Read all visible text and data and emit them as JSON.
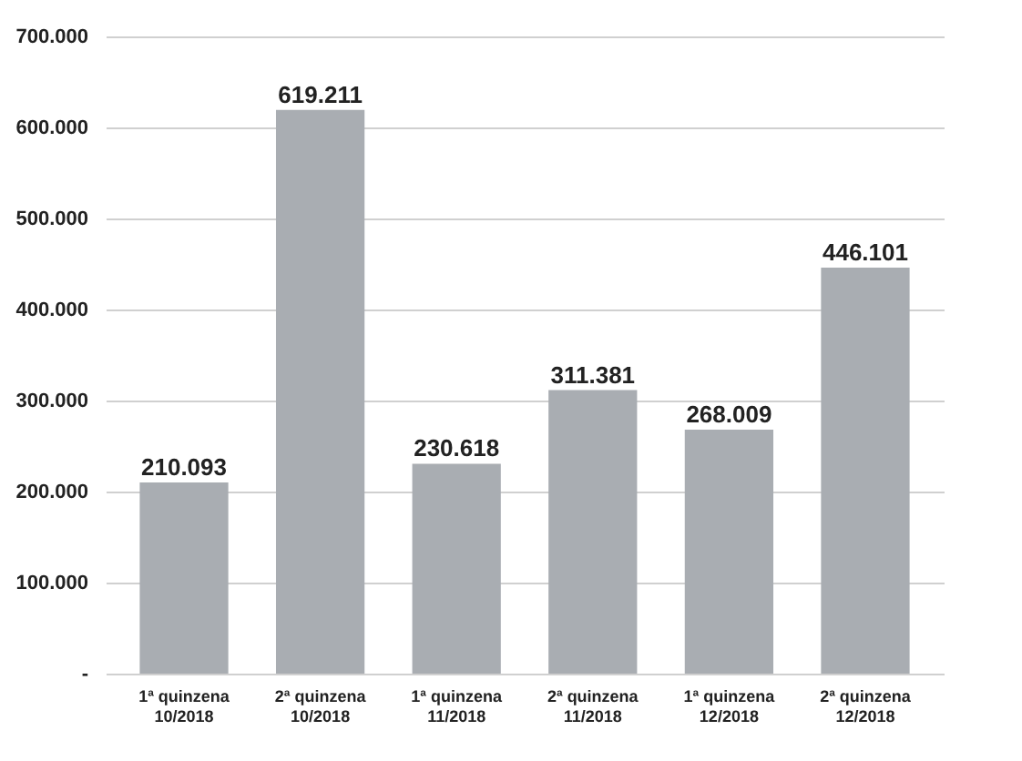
{
  "chart_data": {
    "type": "bar",
    "categories": [
      "1ª quinzena\n10/2018",
      "2ª quinzena\n10/2018",
      "1ª quinzena\n11/2018",
      "2ª quinzena\n11/2018",
      "1ª quinzena\n12/2018",
      "2ª quinzena\n12/2018"
    ],
    "values": [
      210093,
      619211,
      230618,
      311381,
      268009,
      446101
    ],
    "value_labels": [
      "210.093",
      "619.211",
      "230.618",
      "311.381",
      "268.009",
      "446.101"
    ],
    "color": "#a9adb2",
    "ylim": [
      0,
      700000
    ],
    "yticks": [
      {
        "value": 0,
        "label": "-"
      },
      {
        "value": 100000,
        "label": "100.000"
      },
      {
        "value": 200000,
        "label": "200.000"
      },
      {
        "value": 300000,
        "label": "300.000"
      },
      {
        "value": 400000,
        "label": "400.000"
      },
      {
        "value": 500000,
        "label": "500.000"
      },
      {
        "value": 600000,
        "label": "600.000"
      },
      {
        "value": 700000,
        "label": "700.000"
      }
    ],
    "grid": "y"
  }
}
